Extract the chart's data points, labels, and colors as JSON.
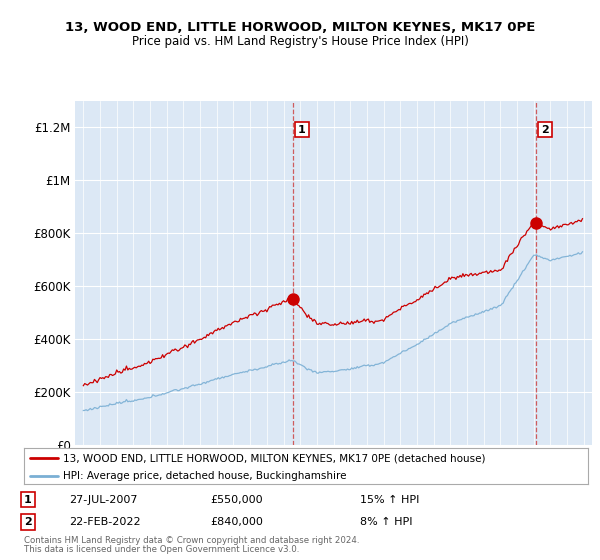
{
  "title": "13, WOOD END, LITTLE HORWOOD, MILTON KEYNES, MK17 0PE",
  "subtitle": "Price paid vs. HM Land Registry's House Price Index (HPI)",
  "legend_line1": "13, WOOD END, LITTLE HORWOOD, MILTON KEYNES, MK17 0PE (detached house)",
  "legend_line2": "HPI: Average price, detached house, Buckinghamshire",
  "footer1": "Contains HM Land Registry data © Crown copyright and database right 2024.",
  "footer2": "This data is licensed under the Open Government Licence v3.0.",
  "sale1_label": "1",
  "sale1_date": "27-JUL-2007",
  "sale1_price": "£550,000",
  "sale1_hpi": "15% ↑ HPI",
  "sale2_label": "2",
  "sale2_date": "22-FEB-2022",
  "sale2_price": "£840,000",
  "sale2_hpi": "8% ↑ HPI",
  "sale1_x": 2007.57,
  "sale1_y": 550000,
  "sale2_x": 2022.14,
  "sale2_y": 840000,
  "ylim": [
    0,
    1300000
  ],
  "xlim": [
    1994.5,
    2025.5
  ],
  "plot_bg_color": "#dce8f5",
  "red_color": "#cc0000",
  "blue_color": "#7aafd4",
  "yticks": [
    0,
    200000,
    400000,
    600000,
    800000,
    1000000,
    1200000
  ],
  "ytick_labels": [
    "£0",
    "£200K",
    "£400K",
    "£600K",
    "£800K",
    "£1M",
    "£1.2M"
  ],
  "xticks": [
    1995,
    1996,
    1997,
    1998,
    1999,
    2000,
    2001,
    2002,
    2003,
    2004,
    2005,
    2006,
    2007,
    2008,
    2009,
    2010,
    2011,
    2012,
    2013,
    2014,
    2015,
    2016,
    2017,
    2018,
    2019,
    2020,
    2021,
    2022,
    2023,
    2024,
    2025
  ]
}
